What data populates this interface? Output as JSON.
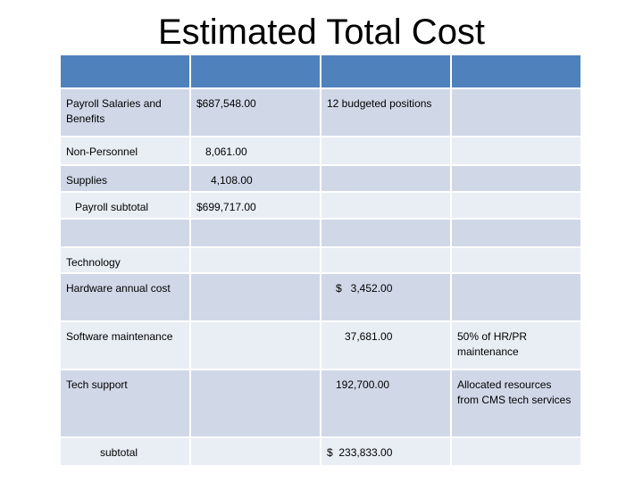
{
  "title": "Estimated Total Cost",
  "colors": {
    "header": "#4f81bd",
    "row": "#d0d8e8",
    "row_alt": "#e9edf4"
  },
  "rows": [
    {
      "label": "Payroll Salaries and Benefits",
      "amount": "$687,548.00",
      "amount2": "",
      "note": "12 budgeted positions"
    },
    {
      "label": "Non-Personnel",
      "amount": "8,061.00",
      "amount2": "",
      "note": ""
    },
    {
      "label": "Supplies",
      "amount": "4,108.00",
      "amount2": "",
      "note": ""
    },
    {
      "label": "Payroll subtotal",
      "amount": "$699,717.00",
      "amount2": "",
      "note": ""
    },
    {
      "label": "",
      "amount": "",
      "amount2": "",
      "note": ""
    },
    {
      "label": "Technology",
      "amount": "",
      "amount2": "",
      "note": ""
    },
    {
      "label": "Hardware annual cost",
      "amount": "",
      "amount2": "$   3,452.00",
      "note": ""
    },
    {
      "label": "Software maintenance",
      "amount": "",
      "amount2": "37,681.00",
      "note": "50% of HR/PR maintenance"
    },
    {
      "label": "Tech support",
      "amount": "",
      "amount2": "192,700.00",
      "note": "Allocated resources from CMS tech services"
    },
    {
      "label": "subtotal",
      "amount": "",
      "amount2": "$  233,833.00",
      "note": ""
    }
  ]
}
